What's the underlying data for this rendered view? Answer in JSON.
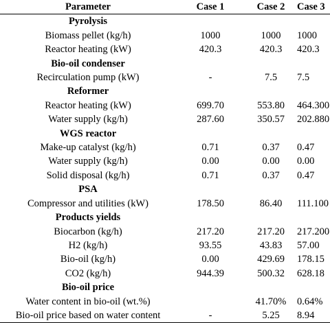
{
  "header": {
    "parameter": "Parameter",
    "case1": "Case 1",
    "case2": "Case 2",
    "case3": "Case 3"
  },
  "sections": [
    {
      "title": "Pyrolysis",
      "rows": [
        {
          "param": "Biomass pellet (kg/h)",
          "c1": "1000",
          "c2": "1000",
          "c3": "1000"
        },
        {
          "param": "Reactor heating (kW)",
          "c1": "420.3",
          "c2": "420.3",
          "c3": "420.3"
        }
      ]
    },
    {
      "title": "Bio-oil condenser",
      "rows": [
        {
          "param": "Recirculation pump (kW)",
          "c1": "-",
          "c2": "7.5",
          "c3": "7.5"
        }
      ]
    },
    {
      "title": "Reformer",
      "rows": [
        {
          "param": "Reactor heating (kW)",
          "c1": "699.70",
          "c2": "553.80",
          "c3": "464.300"
        },
        {
          "param": "Water supply (kg/h)",
          "c1": "287.60",
          "c2": "350.57",
          "c3": "202.880"
        }
      ]
    },
    {
      "title": "WGS reactor",
      "rows": [
        {
          "param": "Make-up catalyst (kg/h)",
          "c1": "0.71",
          "c2": "0.37",
          "c3": "0.47"
        },
        {
          "param": "Water supply (kg/h)",
          "c1": "0.00",
          "c2": "0.00",
          "c3": "0.00"
        },
        {
          "param": "Solid disposal (kg/h)",
          "c1": "0.71",
          "c2": "0.37",
          "c3": "0.47"
        }
      ]
    },
    {
      "title": "PSA",
      "rows": [
        {
          "param": "Compressor and utilities (kW)",
          "c1": "178.50",
          "c2": "86.40",
          "c3": "111.100"
        }
      ]
    },
    {
      "title": "Products yields",
      "rows": [
        {
          "param": "Biocarbon (kg/h)",
          "c1": "217.20",
          "c2": "217.20",
          "c3": "217.200"
        },
        {
          "param": "H2 (kg/h)",
          "c1": "93.55",
          "c2": "43.83",
          "c3": "57.00"
        },
        {
          "param": "Bio-oil (kg/h)",
          "c1": "0.00",
          "c2": "429.69",
          "c3": "178.15"
        },
        {
          "param": "CO2 (kg/h)",
          "c1": "944.39",
          "c2": "500.32",
          "c3": "628.18"
        }
      ]
    },
    {
      "title": "Bio-oil price",
      "rows": [
        {
          "param": "Water content in bio-oil (wt.%)",
          "c1": "",
          "c2": "41.70%",
          "c3": "0.64%"
        },
        {
          "param": "Bio-oil price based on water content",
          "c1": "-",
          "c2": "5.25",
          "c3": "8.94"
        }
      ]
    }
  ]
}
